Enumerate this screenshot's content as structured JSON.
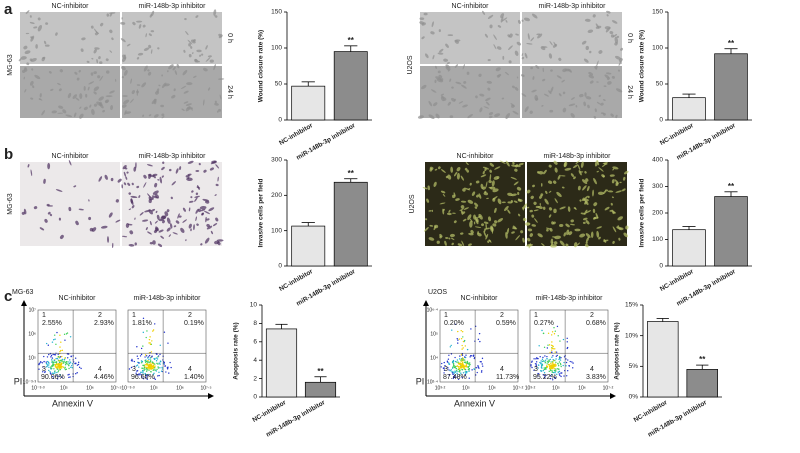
{
  "panel_labels": [
    "a",
    "b",
    "c"
  ],
  "image_groups": [
    {
      "cell_line": "MG-63",
      "columns": [
        "NC-inhibitor",
        "miR-148b-3p inhibitor"
      ],
      "rows": [
        "0 h",
        "24 h"
      ]
    },
    {
      "cell_line": "U2OS",
      "columns": [
        "NC-inhibitor",
        "miR-148b-3p inhibitor"
      ],
      "rows": [
        "0 h",
        "24 h"
      ]
    },
    {
      "cell_line": "MG-63",
      "columns": [
        "NC-inhibitor",
        "miR-148b-3p inhibitor"
      ]
    },
    {
      "cell_line": "U2OS",
      "columns": [
        "NC-inhibitor",
        "miR-148b-3p inhibitor"
      ]
    }
  ],
  "flow": [
    {
      "cell_line": "MG-63",
      "columns": [
        "NC-inhibitor",
        "miR-148b-3p inhibitor"
      ],
      "x_label": "Annexin V",
      "y_label": "PI",
      "x_ticks": [
        "10⁻³·³",
        "10⁵",
        "10⁶",
        "10⁷·⁵"
      ],
      "y_ticks": [
        "10⁻³·³",
        "10⁵",
        "10⁶",
        "10⁷"
      ],
      "plots": [
        {
          "quadrants": [
            "1",
            "2",
            "3",
            "4"
          ],
          "percents": [
            "2.55%",
            "2.93%",
            "90.06%",
            "4.46%"
          ]
        },
        {
          "quadrants": [
            "1",
            "2",
            "3",
            "4"
          ],
          "percents": [
            "1.81%",
            "0.19%",
            "96.60%",
            "1.40%"
          ]
        }
      ]
    },
    {
      "cell_line": "U2OS",
      "columns": [
        "NC-inhibitor",
        "miR-148b-3p inhibitor"
      ],
      "x_label": "Annexin V",
      "y_label": "PI",
      "x_ticks": [
        "10³·²",
        "10⁵",
        "10⁶",
        "10⁷·²"
      ],
      "y_ticks": [
        "10²·⁴",
        "10⁴",
        "10⁵",
        "10⁶·⁴"
      ],
      "plots": [
        {
          "quadrants": [
            "1",
            "2",
            "3",
            "4"
          ],
          "percents": [
            "0.20%",
            "0.59%",
            "87.48%",
            "11.73%"
          ]
        },
        {
          "quadrants": [
            "1",
            "2",
            "3",
            "4"
          ],
          "percents": [
            "0.27%",
            "0.68%",
            "95.22%",
            "3.83%"
          ]
        }
      ]
    }
  ],
  "chart_data": [
    {
      "type": "bar",
      "y_label": "Wound closure rate (%)",
      "categories": [
        "NC-inhibitor",
        "miR-148b-3p inhibitor"
      ],
      "values": [
        47,
        95
      ],
      "errors": [
        6,
        8
      ],
      "colors": [
        "#e6e6e6",
        "#8c8c8c"
      ],
      "annotation": "**",
      "ylim": [
        0,
        150
      ],
      "yticks": [
        0,
        50,
        100,
        150
      ]
    },
    {
      "type": "bar",
      "y_label": "Wound closure rate (%)",
      "categories": [
        "NC-inhibitor",
        "miR-148b-3p inhibitor"
      ],
      "values": [
        31,
        92
      ],
      "errors": [
        5,
        7
      ],
      "colors": [
        "#e6e6e6",
        "#8c8c8c"
      ],
      "annotation": "**",
      "ylim": [
        0,
        150
      ],
      "yticks": [
        0,
        50,
        100,
        150
      ]
    },
    {
      "type": "bar",
      "y_label": "Invasive cells per field",
      "categories": [
        "NC-inhibitor",
        "miR-148b-3p inhibitor"
      ],
      "values": [
        113,
        237
      ],
      "errors": [
        10,
        10
      ],
      "colors": [
        "#e6e6e6",
        "#8c8c8c"
      ],
      "annotation": "**",
      "ylim": [
        0,
        300
      ],
      "yticks": [
        0,
        100,
        200,
        300
      ]
    },
    {
      "type": "bar",
      "y_label": "Invasive cells per field",
      "categories": [
        "NC-inhibitor",
        "miR-148b-3p inhibitor"
      ],
      "values": [
        137,
        262
      ],
      "errors": [
        12,
        18
      ],
      "colors": [
        "#e6e6e6",
        "#8c8c8c"
      ],
      "annotation": "**",
      "ylim": [
        0,
        400
      ],
      "yticks": [
        0,
        100,
        200,
        300,
        400
      ]
    },
    {
      "type": "bar",
      "y_label": "Apoptosis rate (%)",
      "categories": [
        "NC-inhibitor",
        "miR-148b-3p inhibitor"
      ],
      "values": [
        7.4,
        1.6
      ],
      "errors": [
        0.5,
        0.6
      ],
      "colors": [
        "#e6e6e6",
        "#8c8c8c"
      ],
      "annotation": "**",
      "ylim": [
        0,
        10
      ],
      "yticks": [
        0,
        2,
        4,
        6,
        8,
        10
      ]
    },
    {
      "type": "bar",
      "y_label": "Apoptosis rate (%)",
      "categories": [
        "NC-inhibitor",
        "miR-148b-3p inhibitor"
      ],
      "values": [
        12.3,
        4.5
      ],
      "errors": [
        0.5,
        0.7
      ],
      "colors": [
        "#e6e6e6",
        "#8c8c8c"
      ],
      "annotation": "**",
      "ylim": [
        0,
        15
      ],
      "yticks": [
        {
          "value": 0,
          "label": "0%"
        },
        {
          "value": 5,
          "label": "5%"
        },
        {
          "value": 10,
          "label": "10%"
        },
        {
          "value": 15,
          "label": "15%"
        }
      ]
    }
  ]
}
